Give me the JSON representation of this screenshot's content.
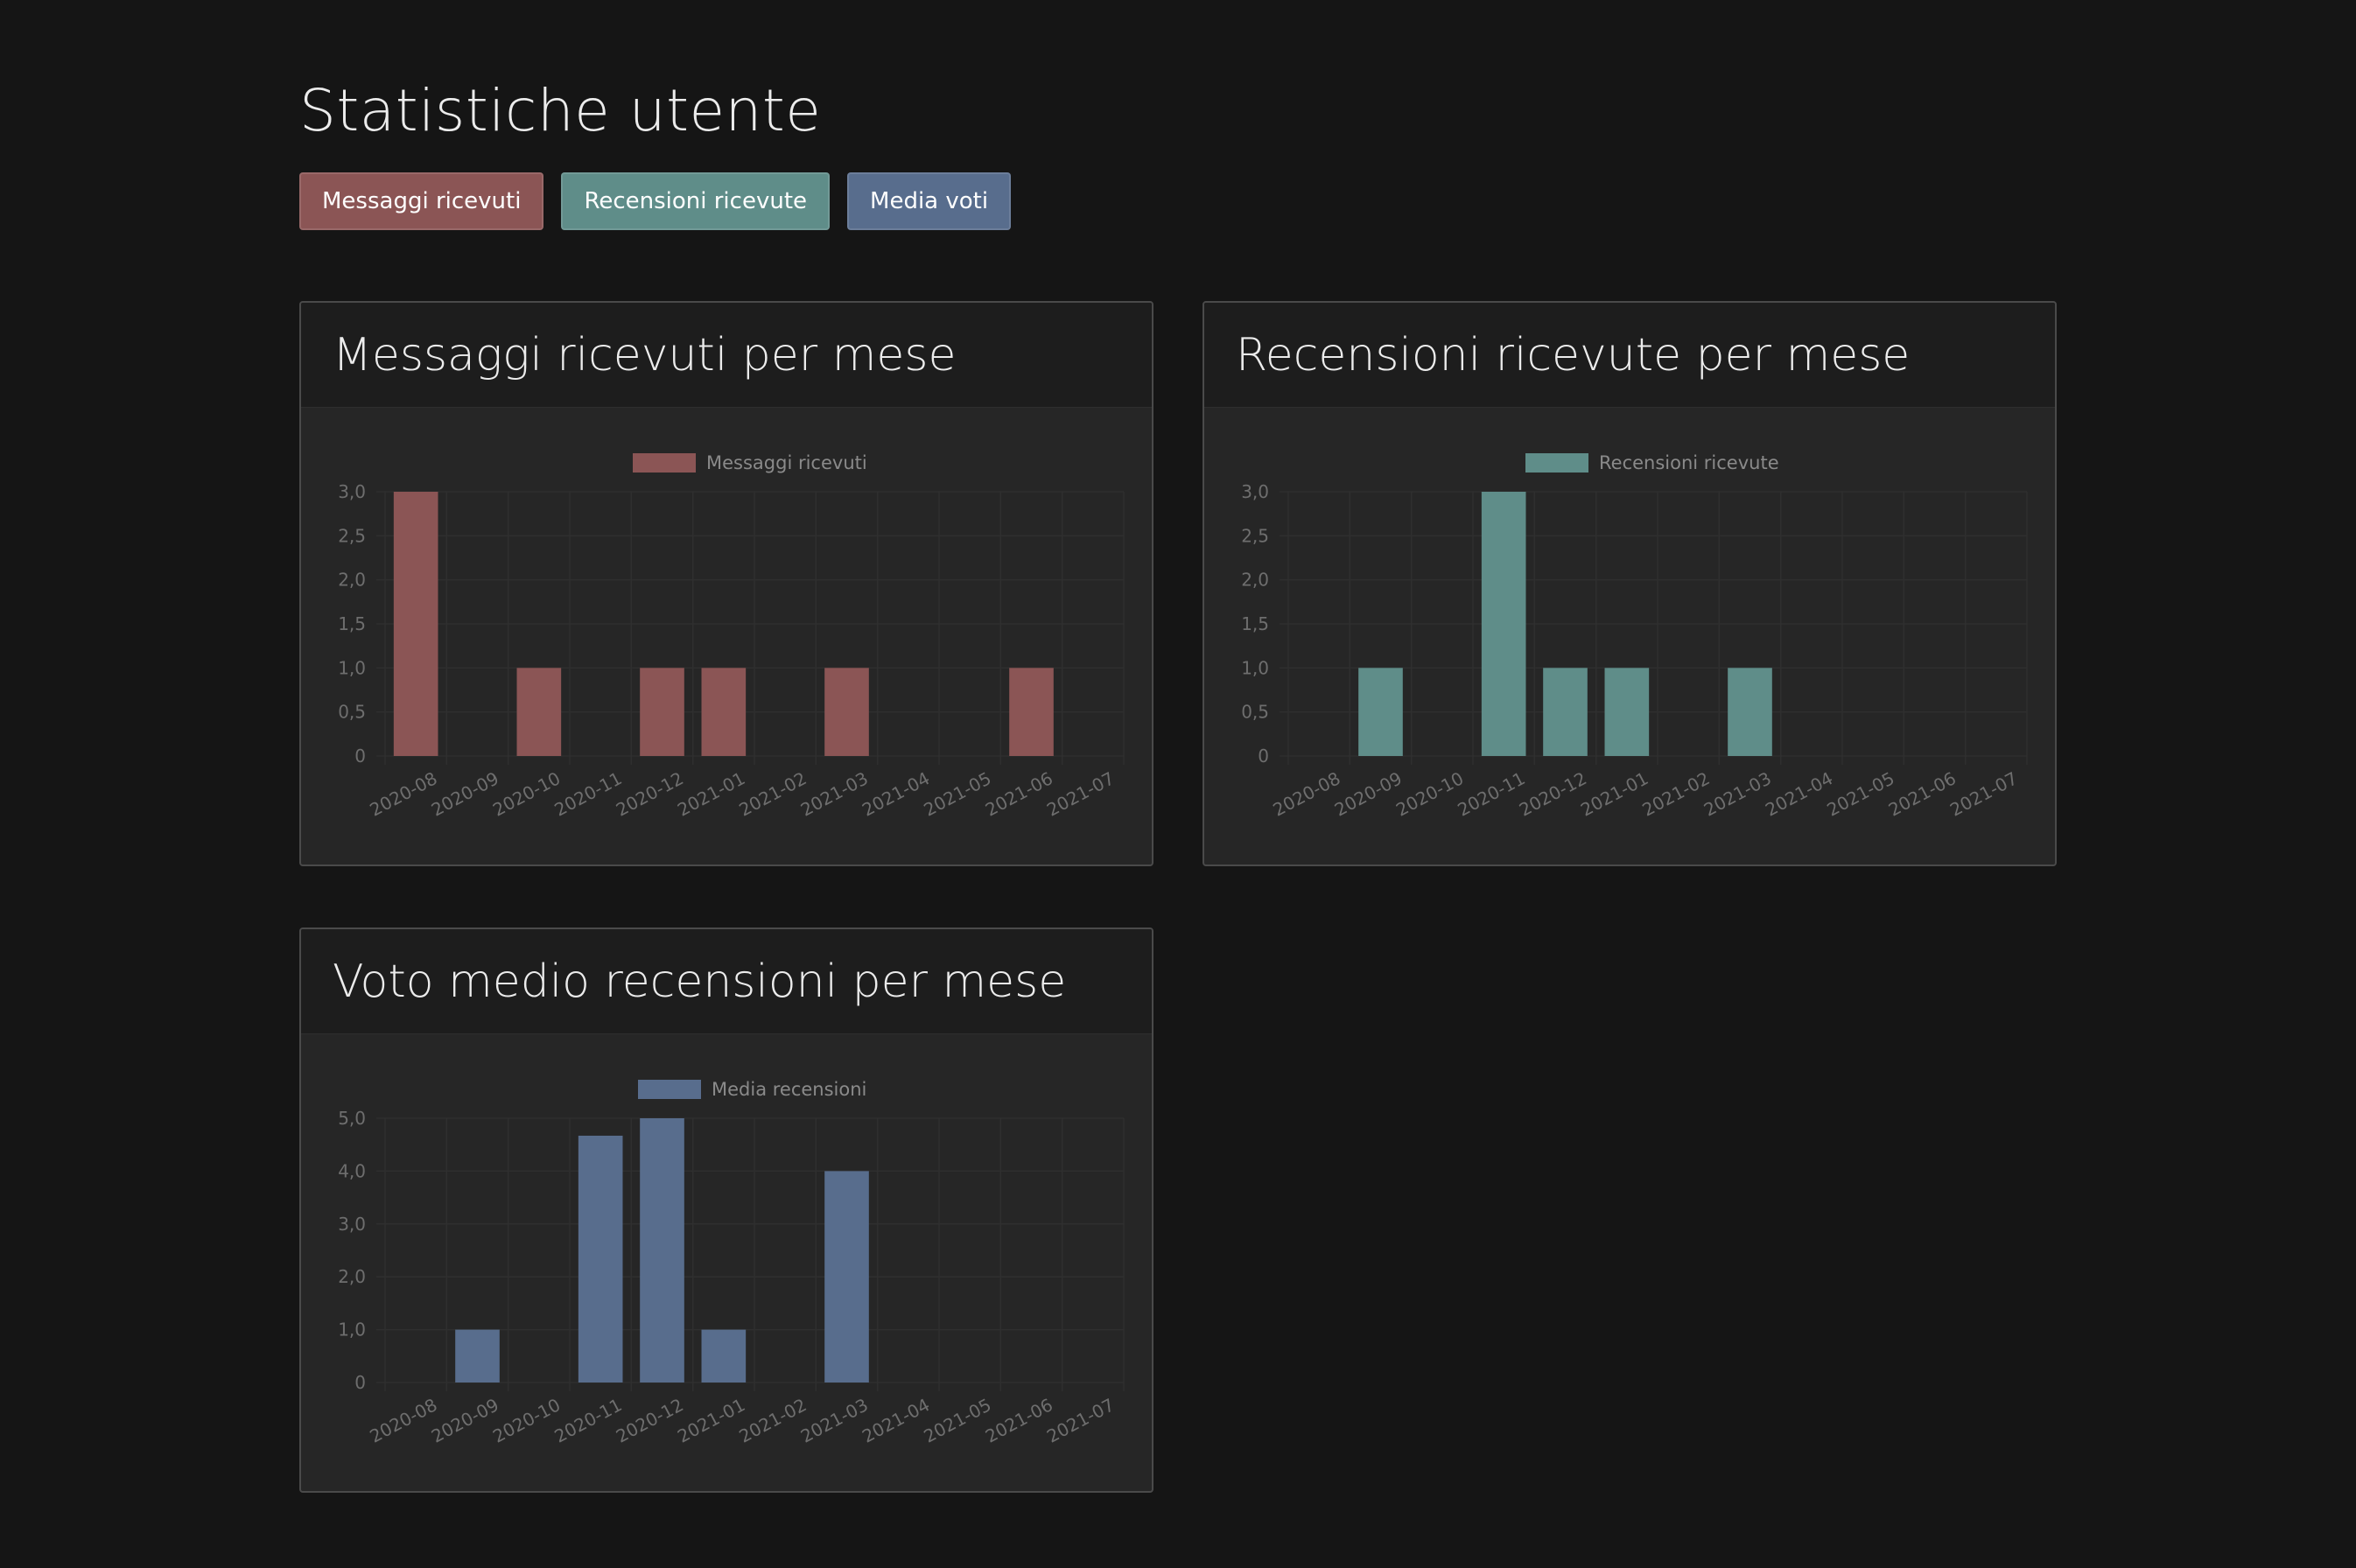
{
  "page": {
    "title": "Statistiche utente"
  },
  "tabs": [
    {
      "label": "Messaggi ricevuti",
      "color": "#8b5555"
    },
    {
      "label": "Recensioni ricevute",
      "color": "#5f8d89"
    },
    {
      "label": "Media voti",
      "color": "#586d8d"
    }
  ],
  "colors": {
    "background": "#151515",
    "card_body": "#262626",
    "card_header": "#1d1d1d",
    "grid": "#2f2f2f",
    "tick_text": "#6e6e6e",
    "legend_text": "#8a8a8a"
  },
  "cards": [
    {
      "title": "Messaggi ricevuti per mese"
    },
    {
      "title": "Recensioni ricevute per mese"
    },
    {
      "title": "Voto medio recensioni per mese"
    }
  ],
  "chart_data": [
    {
      "type": "bar",
      "title": "Messaggi ricevuti per mese",
      "categories": [
        "2020-08",
        "2020-09",
        "2020-10",
        "2020-11",
        "2020-12",
        "2021-01",
        "2021-02",
        "2021-03",
        "2021-04",
        "2021-05",
        "2021-06",
        "2021-07"
      ],
      "series": [
        {
          "name": "Messaggi ricevuti",
          "color": "#8b5555",
          "values": [
            3,
            0,
            1,
            0,
            1,
            1,
            0,
            1,
            0,
            0,
            1,
            0
          ]
        }
      ],
      "ylim": [
        0,
        3
      ],
      "yticks": [
        "0",
        "0,5",
        "1,0",
        "1,5",
        "2,0",
        "2,5",
        "3,0"
      ],
      "grid": true,
      "legend": "top-center"
    },
    {
      "type": "bar",
      "title": "Recensioni ricevute per mese",
      "categories": [
        "2020-08",
        "2020-09",
        "2020-10",
        "2020-11",
        "2020-12",
        "2021-01",
        "2021-02",
        "2021-03",
        "2021-04",
        "2021-05",
        "2021-06",
        "2021-07"
      ],
      "series": [
        {
          "name": "Recensioni ricevute",
          "color": "#5f8d89",
          "values": [
            0,
            1,
            0,
            3,
            1,
            1,
            0,
            1,
            0,
            0,
            0,
            0
          ]
        }
      ],
      "ylim": [
        0,
        3
      ],
      "yticks": [
        "0",
        "0,5",
        "1,0",
        "1,5",
        "2,0",
        "2,5",
        "3,0"
      ],
      "grid": true,
      "legend": "top-center"
    },
    {
      "type": "bar",
      "title": "Voto medio recensioni per mese",
      "categories": [
        "2020-08",
        "2020-09",
        "2020-10",
        "2020-11",
        "2020-12",
        "2021-01",
        "2021-02",
        "2021-03",
        "2021-04",
        "2021-05",
        "2021-06",
        "2021-07"
      ],
      "series": [
        {
          "name": "Media recensioni",
          "color": "#586d8d",
          "values": [
            0,
            1,
            0,
            4.67,
            5,
            1,
            0,
            4,
            0,
            0,
            0,
            0
          ]
        }
      ],
      "ylim": [
        0,
        5
      ],
      "yticks": [
        "0",
        "1,0",
        "2,0",
        "3,0",
        "4,0",
        "5,0"
      ],
      "grid": true,
      "legend": "top-center"
    }
  ]
}
